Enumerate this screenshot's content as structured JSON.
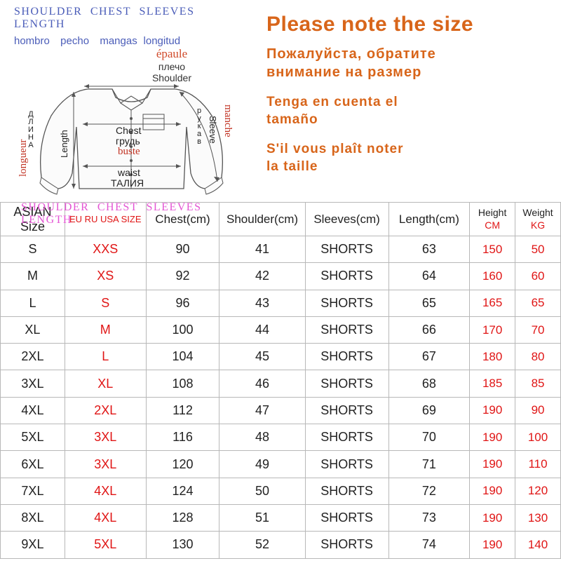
{
  "diagram": {
    "header": [
      "SHOULDER",
      "CHEST",
      "SLEEVES",
      "LENGTH"
    ],
    "sub_es": [
      "hombro",
      "pecho",
      "mangas",
      "longitud"
    ],
    "epaule": "épaule",
    "plecho": "плечо",
    "shoulder_en": "Shoulder",
    "chest_en": "Chest",
    "chest_ru": "грудь",
    "buste": "buste",
    "waist": "waist",
    "talia": "ТАЛИЯ",
    "length": "Length",
    "dlina": "ДЛИНА",
    "longueur": "longueur",
    "sleeve": "Sleeve",
    "rukav": "рукав",
    "manche": "manche",
    "footer": [
      "SHOULDER",
      "CHEST",
      "SLEEVES",
      "LENGTH"
    ]
  },
  "notice": {
    "main": "Please note the size",
    "ru1": "Пожалуйста, обратите",
    "ru2": "внимание на размер",
    "es1": "Tenga en cuenta el",
    "es2": "tamaño",
    "fr1": "S'il vous plaît noter",
    "fr2": "la taille"
  },
  "table": {
    "headers": {
      "asian": "ASIAN Size",
      "eu": "EU RU USA SIZE",
      "chest": "Chest(cm)",
      "shoulder": "Shoulder(cm)",
      "sleeves": "Sleeves(cm)",
      "length": "Length(cm)",
      "height": "Height",
      "height_unit": "CM",
      "weight": "Weight",
      "weight_unit": "KG"
    },
    "rows": [
      {
        "asian": "S",
        "eu": "XXS",
        "chest": "90",
        "shoulder": "41",
        "sleeves": "SHORTS",
        "length": "63",
        "height": "150",
        "weight": "50"
      },
      {
        "asian": "M",
        "eu": "XS",
        "chest": "92",
        "shoulder": "42",
        "sleeves": "SHORTS",
        "length": "64",
        "height": "160",
        "weight": "60"
      },
      {
        "asian": "L",
        "eu": "S",
        "chest": "96",
        "shoulder": "43",
        "sleeves": "SHORTS",
        "length": "65",
        "height": "165",
        "weight": "65"
      },
      {
        "asian": "XL",
        "eu": "M",
        "chest": "100",
        "shoulder": "44",
        "sleeves": "SHORTS",
        "length": "66",
        "height": "170",
        "weight": "70"
      },
      {
        "asian": "2XL",
        "eu": "L",
        "chest": "104",
        "shoulder": "45",
        "sleeves": "SHORTS",
        "length": "67",
        "height": "180",
        "weight": "80"
      },
      {
        "asian": "3XL",
        "eu": "XL",
        "chest": "108",
        "shoulder": "46",
        "sleeves": "SHORTS",
        "length": "68",
        "height": "185",
        "weight": "85"
      },
      {
        "asian": "4XL",
        "eu": "2XL",
        "chest": "112",
        "shoulder": "47",
        "sleeves": "SHORTS",
        "length": "69",
        "height": "190",
        "weight": "90"
      },
      {
        "asian": "5XL",
        "eu": "3XL",
        "chest": "116",
        "shoulder": "48",
        "sleeves": "SHORTS",
        "length": "70",
        "height": "190",
        "weight": "100"
      },
      {
        "asian": "6XL",
        "eu": "3XL",
        "chest": "120",
        "shoulder": "49",
        "sleeves": "SHORTS",
        "length": "71",
        "height": "190",
        "weight": "110"
      },
      {
        "asian": "7XL",
        "eu": "4XL",
        "chest": "124",
        "shoulder": "50",
        "sleeves": "SHORTS",
        "length": "72",
        "height": "190",
        "weight": "120"
      },
      {
        "asian": "8XL",
        "eu": "4XL",
        "chest": "128",
        "shoulder": "51",
        "sleeves": "SHORTS",
        "length": "73",
        "height": "190",
        "weight": "130"
      },
      {
        "asian": "9XL",
        "eu": "5XL",
        "chest": "130",
        "shoulder": "52",
        "sleeves": "SHORTS",
        "length": "74",
        "height": "190",
        "weight": "140"
      }
    ]
  },
  "style": {
    "accent_color": "#d8651a",
    "red_color": "#e01515",
    "border_color": "#b8b8b8",
    "blue_label": "#4a5cb8",
    "pink_label": "#e455d4"
  }
}
